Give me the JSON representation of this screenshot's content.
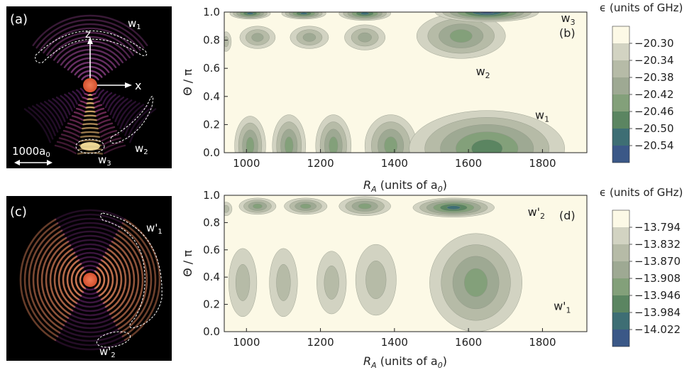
{
  "panels": {
    "a": {
      "label": "(a)",
      "lobe_labels": [
        "w",
        "w",
        "w"
      ],
      "lobe_subs": [
        "1",
        "2",
        "3"
      ],
      "axis_z": "z",
      "axis_x": "x",
      "scale_bar_main": "1000a",
      "scale_bar_sub": "0"
    },
    "c": {
      "label": "(c)",
      "lobe_labels": [
        "w'",
        "w'"
      ],
      "lobe_subs": [
        "1",
        "2"
      ]
    }
  },
  "chart_data": [
    {
      "type": "heatmap",
      "panel_label": "(b)",
      "xlabel_main": "R",
      "xlabel_sub": "A",
      "xlabel_rest": " (units of a",
      "xlabel_sub2": "0",
      "xlabel_close": ")",
      "ylabel": "Θ / π",
      "xlim": [
        940,
        1920
      ],
      "ylim": [
        0.0,
        1.0
      ],
      "x_ticks": [
        1000,
        1200,
        1400,
        1600,
        1800
      ],
      "y_ticks": [
        "0.0",
        "0.2",
        "0.4",
        "0.6",
        "0.8",
        "1.0"
      ],
      "colorbar_title": "ϵ (units of GHz)",
      "colorbar_ticks": [
        "−20.30",
        "−20.34",
        "−20.38",
        "−20.42",
        "−20.46",
        "−20.50",
        "−20.54"
      ],
      "colorbar_range": [
        -20.56,
        -20.28
      ],
      "annotations": [
        {
          "text": "w",
          "sub": "3",
          "x": 1850,
          "y": 0.93
        },
        {
          "text": "w",
          "sub": "2",
          "x": 1620,
          "y": 0.55
        },
        {
          "text": "w",
          "sub": "1",
          "x": 1780,
          "y": 0.24
        }
      ],
      "blobs": [
        {
          "cx": 1010,
          "cy": 0.05,
          "rx": 42,
          "ry": 0.21,
          "min": -20.43
        },
        {
          "cx": 1115,
          "cy": 0.05,
          "rx": 45,
          "ry": 0.22,
          "min": -20.42
        },
        {
          "cx": 1235,
          "cy": 0.05,
          "rx": 48,
          "ry": 0.22,
          "min": -20.42
        },
        {
          "cx": 1390,
          "cy": 0.05,
          "rx": 70,
          "ry": 0.22,
          "min": -20.43
        },
        {
          "cx": 1650,
          "cy": 0.03,
          "rx": 210,
          "ry": 0.27,
          "min": -20.47
        },
        {
          "cx": 945,
          "cy": 0.79,
          "rx": 14,
          "ry": 0.07,
          "min": -20.38
        },
        {
          "cx": 1030,
          "cy": 0.82,
          "rx": 48,
          "ry": 0.08,
          "min": -20.4
        },
        {
          "cx": 1170,
          "cy": 0.82,
          "rx": 52,
          "ry": 0.08,
          "min": -20.4
        },
        {
          "cx": 1320,
          "cy": 0.82,
          "rx": 55,
          "ry": 0.09,
          "min": -20.4
        },
        {
          "cx": 1580,
          "cy": 0.83,
          "rx": 120,
          "ry": 0.16,
          "min": -20.44
        },
        {
          "cx": 1010,
          "cy": 0.99,
          "rx": 55,
          "ry": 0.04,
          "min": -20.5
        },
        {
          "cx": 1155,
          "cy": 0.99,
          "rx": 60,
          "ry": 0.04,
          "min": -20.5
        },
        {
          "cx": 1320,
          "cy": 0.99,
          "rx": 70,
          "ry": 0.05,
          "min": -20.52
        },
        {
          "cx": 1650,
          "cy": 1.0,
          "rx": 140,
          "ry": 0.07,
          "min": -20.55
        }
      ]
    },
    {
      "type": "heatmap",
      "panel_label": "(d)",
      "xlabel_main": "R",
      "xlabel_sub": "A",
      "xlabel_rest": " (units of a",
      "xlabel_sub2": "0",
      "xlabel_close": ")",
      "ylabel": "Θ / π",
      "xlim": [
        940,
        1920
      ],
      "ylim": [
        0.0,
        1.0
      ],
      "x_ticks": [
        1000,
        1200,
        1400,
        1600,
        1800
      ],
      "y_ticks": [
        "0.0",
        "0.2",
        "0.4",
        "0.6",
        "0.8",
        "1.0"
      ],
      "colorbar_title": "ϵ (units of GHz)",
      "colorbar_ticks": [
        "−13.794",
        "−13.832",
        "−13.870",
        "−13.908",
        "−13.946",
        "−13.984",
        "−14.022"
      ],
      "colorbar_range": [
        -14.05,
        -13.775
      ],
      "annotations": [
        {
          "text": "w'",
          "sub": "2",
          "x": 1760,
          "y": 0.85
        },
        {
          "text": "w'",
          "sub": "1",
          "x": 1830,
          "y": 0.16
        }
      ],
      "blobs": [
        {
          "cx": 990,
          "cy": 0.36,
          "rx": 38,
          "ry": 0.25,
          "min": -13.84
        },
        {
          "cx": 1100,
          "cy": 0.36,
          "rx": 38,
          "ry": 0.25,
          "min": -13.84
        },
        {
          "cx": 1230,
          "cy": 0.36,
          "rx": 40,
          "ry": 0.23,
          "min": -13.87
        },
        {
          "cx": 1350,
          "cy": 0.38,
          "rx": 55,
          "ry": 0.26,
          "min": -13.87
        },
        {
          "cx": 1620,
          "cy": 0.36,
          "rx": 125,
          "ry": 0.36,
          "min": -13.92
        },
        {
          "cx": 945,
          "cy": 0.9,
          "rx": 16,
          "ry": 0.05,
          "min": -13.86
        },
        {
          "cx": 1030,
          "cy": 0.92,
          "rx": 50,
          "ry": 0.06,
          "min": -13.93
        },
        {
          "cx": 1160,
          "cy": 0.92,
          "rx": 58,
          "ry": 0.06,
          "min": -13.94
        },
        {
          "cx": 1320,
          "cy": 0.92,
          "rx": 70,
          "ry": 0.07,
          "min": -13.95
        },
        {
          "cx": 1560,
          "cy": 0.91,
          "rx": 110,
          "ry": 0.07,
          "min": -14.03
        }
      ]
    }
  ],
  "colors": {
    "background_plot": "#fcf9e6",
    "density_bg": "#000000",
    "center_dot": "#e25c3b",
    "cmap": [
      "#fcf9e6",
      "#d2d3c2",
      "#b6bba7",
      "#9ea993",
      "#83a07a",
      "#5b8561",
      "#3e6e74",
      "#3b5887"
    ]
  }
}
